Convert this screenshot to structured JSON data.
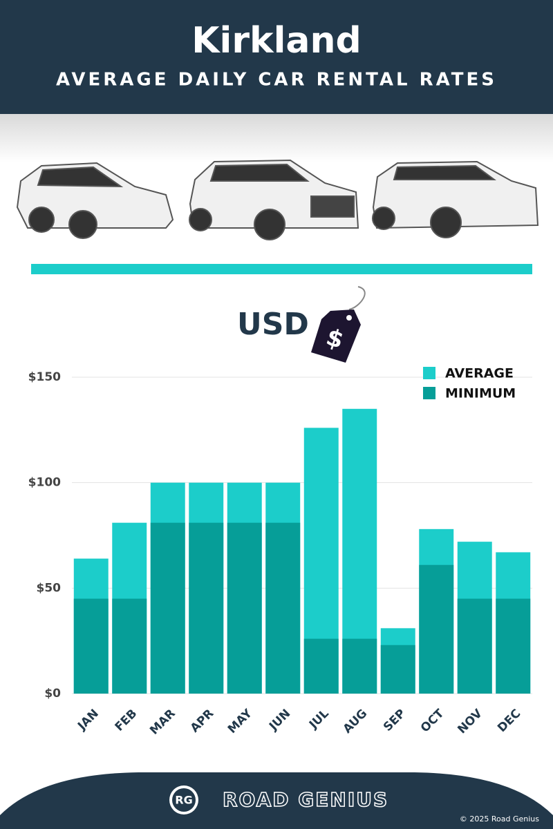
{
  "header": {
    "title": "Kirkland",
    "subtitle": "AVERAGE DAILY CAR RENTAL RATES"
  },
  "currency": {
    "label": "USD",
    "symbol": "$"
  },
  "chart_data": {
    "type": "bar",
    "categories": [
      "JAN",
      "FEB",
      "MAR",
      "APR",
      "MAY",
      "JUN",
      "JUL",
      "AUG",
      "SEP",
      "OCT",
      "NOV",
      "DEC"
    ],
    "series": [
      {
        "name": "AVERAGE",
        "color": "#1ccdca",
        "values": [
          64,
          81,
          100,
          100,
          100,
          100,
          126,
          135,
          31,
          78,
          72,
          67
        ]
      },
      {
        "name": "MINIMUM",
        "color": "#069e98",
        "values": [
          45,
          45,
          81,
          81,
          81,
          81,
          26,
          26,
          23,
          61,
          45,
          45
        ]
      }
    ],
    "ylim": [
      0,
      150
    ],
    "yticks": [
      {
        "value": 0,
        "label": "$0"
      },
      {
        "value": 50,
        "label": "$50"
      },
      {
        "value": 100,
        "label": "$100"
      },
      {
        "value": 150,
        "label": "$150"
      }
    ],
    "grid": true,
    "legend": "top-right"
  },
  "footer": {
    "logo": "RG",
    "brand": "ROAD GENIUS",
    "copyright": "© 2025 Road Genius"
  }
}
